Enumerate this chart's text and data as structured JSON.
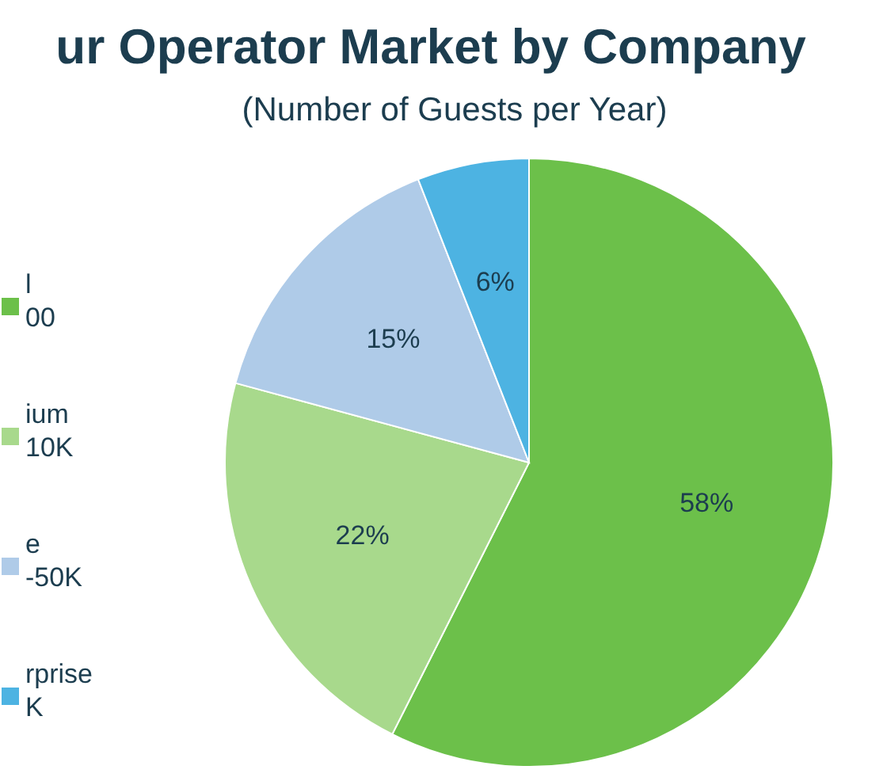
{
  "chart_data": {
    "type": "pie",
    "title": "ur Operator Market by Company",
    "subtitle": "(Number of Guests per Year)",
    "categories": [
      "l\n00",
      "ium\n10K",
      "e\n-50K",
      "rprise\nK"
    ],
    "values": [
      58,
      22,
      15,
      6
    ],
    "colors": [
      "#6cc04a",
      "#a8d98c",
      "#afcbe8",
      "#4db3e2"
    ],
    "value_labels": [
      "58%",
      "22%",
      "15%",
      "6%"
    ],
    "legend": "left"
  }
}
